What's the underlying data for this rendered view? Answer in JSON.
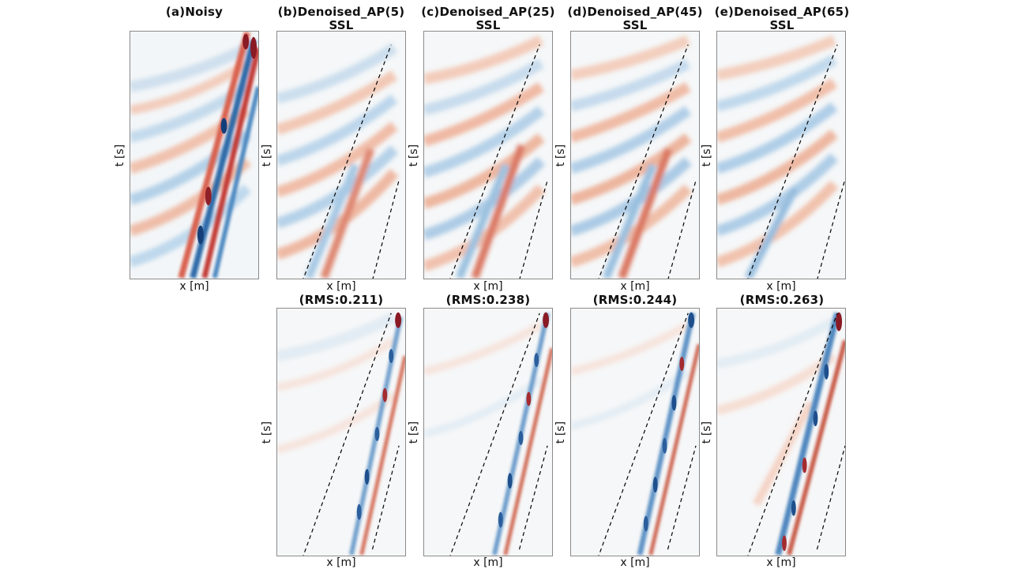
{
  "figure": {
    "panels_top": [
      {
        "id": "a",
        "title_line1": "(a)Noisy",
        "title_line2": "",
        "xlabel": "x [m]",
        "ylabel": "t [s]"
      },
      {
        "id": "b",
        "title_line1": "(b)Denoised_AP(5)",
        "title_line2": "SSL",
        "xlabel": "x [m]",
        "ylabel": "t [s]"
      },
      {
        "id": "c",
        "title_line1": "(c)Denoised_AP(25)",
        "title_line2": "SSL",
        "xlabel": "x [m]",
        "ylabel": "t [s]"
      },
      {
        "id": "d",
        "title_line1": "(d)Denoised_AP(45)",
        "title_line2": "SSL",
        "xlabel": "x [m]",
        "ylabel": "t [s]"
      },
      {
        "id": "e",
        "title_line1": "(e)Denoised_AP(65)",
        "title_line2": "SSL",
        "xlabel": "x [m]",
        "ylabel": "t [s]"
      }
    ],
    "panels_bottom": [
      {
        "id": "b2",
        "title": "(RMS:0.211)",
        "xlabel": "x [m]",
        "ylabel": "t [s]"
      },
      {
        "id": "c2",
        "title": "(RMS:0.238)",
        "xlabel": "x [m]",
        "ylabel": "t [s]"
      },
      {
        "id": "d2",
        "title": "(RMS:0.244)",
        "xlabel": "x [m]",
        "ylabel": "t [s]"
      },
      {
        "id": "e2",
        "title": "(RMS:0.263)",
        "xlabel": "x [m]",
        "ylabel": "t [s]"
      }
    ]
  }
}
